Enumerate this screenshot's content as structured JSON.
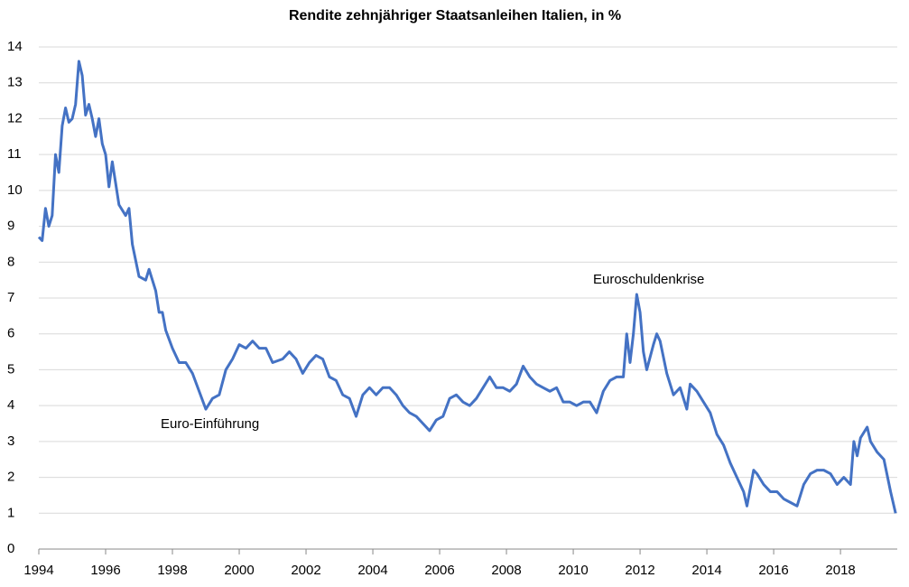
{
  "chart_data": {
    "type": "line",
    "title": "Rendite zehnjähriger Staatsanleihen Italien, in %",
    "annotations": [
      "Euroschuldenkrise",
      "Euro-Einführung"
    ],
    "xlim": [
      1994,
      2019.7
    ],
    "xticks": [
      1994,
      1996,
      1998,
      2000,
      2002,
      2004,
      2006,
      2008,
      2010,
      2012,
      2014,
      2016,
      2018
    ],
    "ylim": [
      0,
      14
    ],
    "yticks": [
      0,
      1,
      2,
      3,
      4,
      5,
      6,
      7,
      8,
      9,
      10,
      11,
      12,
      13,
      14
    ],
    "grid": true,
    "x": [
      1994.0,
      1994.1,
      1994.2,
      1994.3,
      1994.4,
      1994.5,
      1994.6,
      1994.7,
      1994.8,
      1994.9,
      1995.0,
      1995.1,
      1995.2,
      1995.3,
      1995.4,
      1995.5,
      1995.6,
      1995.7,
      1995.8,
      1995.9,
      1996.0,
      1996.1,
      1996.2,
      1996.3,
      1996.4,
      1996.6,
      1996.7,
      1996.8,
      1997.0,
      1997.2,
      1997.3,
      1997.5,
      1997.6,
      1997.7,
      1997.8,
      1998.0,
      1998.2,
      1998.4,
      1998.6,
      1998.8,
      1999.0,
      1999.2,
      1999.4,
      1999.6,
      1999.8,
      2000.0,
      2000.2,
      2000.4,
      2000.6,
      2000.8,
      2001.0,
      2001.3,
      2001.5,
      2001.7,
      2001.9,
      2002.1,
      2002.3,
      2002.5,
      2002.7,
      2002.9,
      2003.1,
      2003.3,
      2003.5,
      2003.7,
      2003.9,
      2004.1,
      2004.3,
      2004.5,
      2004.7,
      2004.9,
      2005.1,
      2005.3,
      2005.5,
      2005.7,
      2005.9,
      2006.1,
      2006.3,
      2006.5,
      2006.7,
      2006.9,
      2007.1,
      2007.3,
      2007.5,
      2007.7,
      2007.9,
      2008.1,
      2008.3,
      2008.5,
      2008.7,
      2008.9,
      2009.1,
      2009.3,
      2009.5,
      2009.7,
      2009.9,
      2010.1,
      2010.3,
      2010.5,
      2010.7,
      2010.9,
      2011.1,
      2011.3,
      2011.5,
      2011.6,
      2011.7,
      2011.8,
      2011.9,
      2012.0,
      2012.1,
      2012.2,
      2012.4,
      2012.5,
      2012.6,
      2012.8,
      2013.0,
      2013.2,
      2013.4,
      2013.5,
      2013.7,
      2013.9,
      2014.1,
      2014.3,
      2014.5,
      2014.7,
      2014.9,
      2015.1,
      2015.2,
      2015.4,
      2015.5,
      2015.7,
      2015.9,
      2016.1,
      2016.3,
      2016.5,
      2016.7,
      2016.9,
      2017.1,
      2017.3,
      2017.5,
      2017.7,
      2017.9,
      2018.1,
      2018.3,
      2018.4,
      2018.5,
      2018.6,
      2018.8,
      2018.9,
      2019.1,
      2019.3,
      2019.5,
      2019.65
    ],
    "series": [
      {
        "name": "Rendite",
        "color": "#4472c4",
        "values": [
          8.7,
          8.6,
          9.5,
          9.0,
          9.3,
          11.0,
          10.5,
          11.8,
          12.3,
          11.9,
          12.0,
          12.4,
          13.6,
          13.2,
          12.1,
          12.4,
          12.0,
          11.5,
          12.0,
          11.3,
          11.0,
          10.1,
          10.8,
          10.2,
          9.6,
          9.3,
          9.5,
          8.5,
          7.6,
          7.5,
          7.8,
          7.2,
          6.6,
          6.6,
          6.1,
          5.6,
          5.2,
          5.2,
          4.9,
          4.4,
          3.9,
          4.2,
          4.3,
          5.0,
          5.3,
          5.7,
          5.6,
          5.8,
          5.6,
          5.6,
          5.2,
          5.3,
          5.5,
          5.3,
          4.9,
          5.2,
          5.4,
          5.3,
          4.8,
          4.7,
          4.3,
          4.2,
          3.7,
          4.3,
          4.5,
          4.3,
          4.5,
          4.5,
          4.3,
          4.0,
          3.8,
          3.7,
          3.5,
          3.3,
          3.6,
          3.7,
          4.2,
          4.3,
          4.1,
          4.0,
          4.2,
          4.5,
          4.8,
          4.5,
          4.5,
          4.4,
          4.6,
          5.1,
          4.8,
          4.6,
          4.5,
          4.4,
          4.5,
          4.1,
          4.1,
          4.0,
          4.1,
          4.1,
          3.8,
          4.4,
          4.7,
          4.8,
          4.8,
          6.0,
          5.2,
          6.0,
          7.1,
          6.6,
          5.5,
          5.0,
          5.7,
          6.0,
          5.8,
          4.9,
          4.3,
          4.5,
          3.9,
          4.6,
          4.4,
          4.1,
          3.8,
          3.2,
          2.9,
          2.4,
          2.0,
          1.6,
          1.2,
          2.2,
          2.1,
          1.8,
          1.6,
          1.6,
          1.4,
          1.3,
          1.2,
          1.8,
          2.1,
          2.2,
          2.2,
          2.1,
          1.8,
          2.0,
          1.8,
          3.0,
          2.6,
          3.1,
          3.4,
          3.0,
          2.7,
          2.5,
          1.6,
          1.0
        ]
      }
    ]
  }
}
